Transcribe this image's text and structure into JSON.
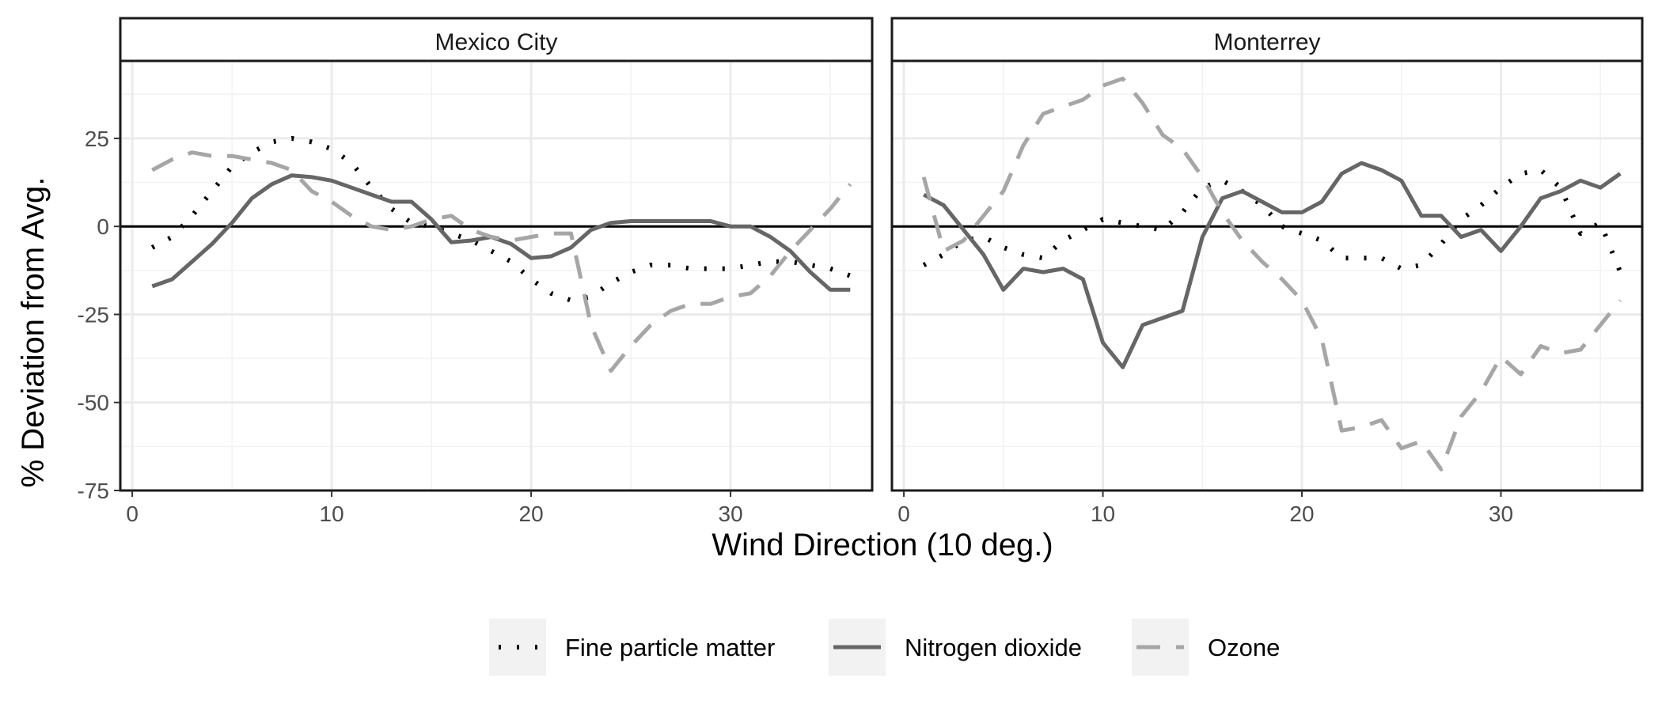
{
  "chart_data": {
    "type": "line",
    "xlabel": "Wind Direction (10 deg.)",
    "ylabel": "% Deviation from Avg.",
    "xlim": [
      -0.6,
      37.1
    ],
    "ylim": [
      -75,
      47
    ],
    "x_ticks": [
      0,
      10,
      20,
      30
    ],
    "y_ticks": [
      25,
      0,
      -25,
      -50,
      -75
    ],
    "y_tick_labels": [
      "25",
      "0",
      "-25",
      "-50",
      "-75"
    ],
    "grid": true,
    "reference_line": 0,
    "legend_position": "bottom",
    "legend": [
      {
        "name": "Fine particle matter",
        "color": "#000000",
        "style": "dotted"
      },
      {
        "name": "Nitrogen dioxide",
        "color": "#666666",
        "style": "solid"
      },
      {
        "name": "Ozone",
        "color": "#a6a6a6",
        "style": "dashed"
      }
    ],
    "panels": [
      {
        "title": "Mexico City",
        "x": [
          1,
          2,
          3,
          4,
          5,
          6,
          7,
          8,
          9,
          10,
          11,
          12,
          13,
          14,
          15,
          16,
          17,
          18,
          19,
          20,
          21,
          22,
          23,
          24,
          25,
          26,
          27,
          28,
          29,
          30,
          31,
          32,
          33,
          34,
          35,
          36
        ],
        "series": [
          {
            "name": "Fine particle matter",
            "values": [
              -6,
              -3,
              3,
              10,
              17,
              21,
              24,
              25,
              24,
              22,
              18,
              11,
              5,
              1,
              0,
              -2,
              -4,
              -7,
              -10,
              -15,
              -19,
              -21,
              -20,
              -16,
              -13,
              -11,
              -11,
              -12,
              -12,
              -12,
              -11,
              -10,
              -10,
              -11,
              -12,
              -14
            ]
          },
          {
            "name": "Nitrogen dioxide",
            "values": [
              -17,
              -15,
              -10,
              -5,
              1,
              8,
              12,
              14.5,
              14,
              13,
              11,
              9,
              7,
              7,
              2,
              -4.5,
              -4,
              -3,
              -5,
              -9,
              -8.5,
              -6,
              -1,
              1,
              1.5,
              1.5,
              1.5,
              1.5,
              1.5,
              0,
              0,
              -3,
              -7,
              -13,
              -18,
              -18
            ]
          },
          {
            "name": "Ozone",
            "values": [
              16,
              19,
              21,
              20,
              20,
              19,
              18,
              16,
              10,
              7,
              3,
              0,
              -1,
              0,
              2,
              3,
              -1,
              -3,
              -4,
              -3,
              -2,
              -2,
              -28,
              -41,
              -34,
              -28,
              -24,
              -22,
              -22,
              -20,
              -19,
              -14,
              -7,
              -1,
              5,
              12
            ]
          }
        ]
      },
      {
        "title": "Monterrey",
        "x": [
          1,
          2,
          3,
          4,
          5,
          6,
          7,
          8,
          9,
          10,
          11,
          12,
          13,
          14,
          15,
          16,
          17,
          18,
          19,
          20,
          21,
          22,
          23,
          24,
          25,
          26,
          27,
          28,
          29,
          30,
          31,
          32,
          33,
          34,
          35,
          36
        ],
        "series": [
          {
            "name": "Fine particle matter",
            "values": [
              -11,
              -8,
              -4,
              -3,
              -6,
              -8,
              -9,
              -4,
              -1,
              2,
              1,
              0,
              -1,
              4,
              11,
              13,
              10,
              6,
              0,
              -2,
              -4,
              -9,
              -9,
              -9,
              -12,
              -11,
              -5,
              2,
              6,
              11,
              15,
              16,
              11,
              -2,
              1,
              -13
            ]
          },
          {
            "name": "Nitrogen dioxide",
            "values": [
              9,
              6,
              -1,
              -8,
              -18,
              -12,
              -13,
              -12,
              -15,
              -33,
              -40,
              -28,
              -26,
              -24,
              -3,
              8,
              10,
              7,
              4,
              4,
              7,
              15,
              18,
              16,
              13,
              3,
              3,
              -3,
              -1,
              -7,
              0,
              8,
              10,
              13,
              11,
              15
            ]
          },
          {
            "name": "Ozone",
            "values": [
              14,
              -7,
              -4,
              3,
              10,
              23,
              32,
              34,
              36,
              40,
              42,
              35,
              26,
              22,
              14,
              4,
              -4,
              -10,
              -15,
              -21,
              -32,
              -58,
              -57,
              -55,
              -63,
              -61,
              -69,
              -54,
              -47,
              -37,
              -42,
              -34,
              -36,
              -35,
              -28,
              -21
            ]
          }
        ]
      }
    ]
  }
}
